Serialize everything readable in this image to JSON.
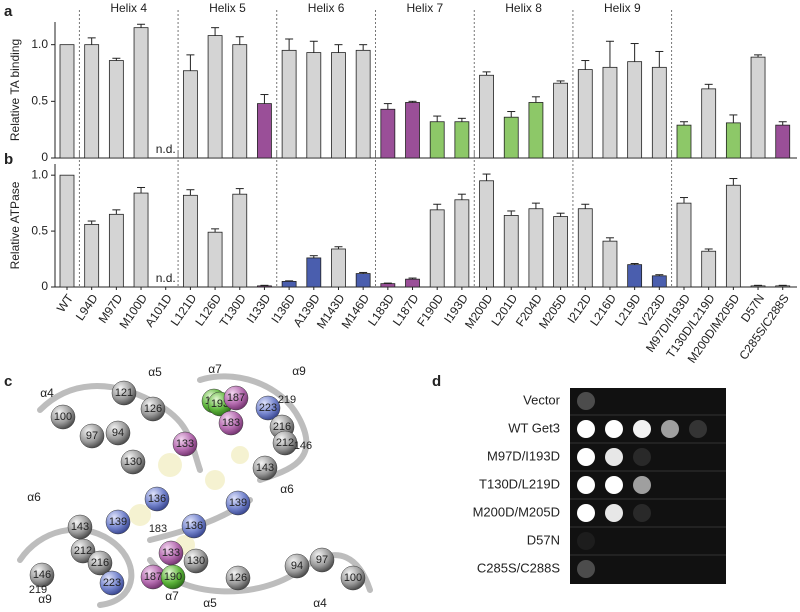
{
  "chart_data": [
    {
      "type": "bar",
      "panel": "a",
      "y_label": "Relative TA binding",
      "values": [
        1.0,
        1.0,
        0.86,
        1.15,
        null,
        0.77,
        1.08,
        1.0,
        0.48,
        0.95,
        0.93,
        0.93,
        0.95,
        0.43,
        0.49,
        0.32,
        0.32,
        0.73,
        0.36,
        0.49,
        0.66,
        0.78,
        0.8,
        0.85,
        0.8,
        0.29,
        0.61,
        0.31,
        0.89,
        0.29
      ],
      "errors": [
        0,
        0.06,
        0.02,
        0.03,
        null,
        0.14,
        0.07,
        0.07,
        0.08,
        0.1,
        0.1,
        0.07,
        0.05,
        0.05,
        0.01,
        0.05,
        0.03,
        0.03,
        0.05,
        0.05,
        0.02,
        0.08,
        0.23,
        0.16,
        0.14,
        0.03,
        0.04,
        0.07,
        0.02,
        0.03
      ],
      "value_labels": [
        null,
        null,
        null,
        null,
        "n.d.",
        null,
        null,
        null,
        null,
        null,
        null,
        null,
        null,
        null,
        null,
        null,
        null,
        null,
        null,
        null,
        null,
        null,
        null,
        null,
        null,
        null,
        null,
        null,
        null,
        null
      ],
      "colors": [
        "#d4d4d4",
        "#d4d4d4",
        "#d4d4d4",
        "#d4d4d4",
        "#d4d4d4",
        "#d4d4d4",
        "#d4d4d4",
        "#d4d4d4",
        "#9a4f98",
        "#d4d4d4",
        "#d4d4d4",
        "#d4d4d4",
        "#d4d4d4",
        "#9a4f98",
        "#9a4f98",
        "#8dc868",
        "#8dc868",
        "#d4d4d4",
        "#8dc868",
        "#8dc868",
        "#d4d4d4",
        "#d4d4d4",
        "#d4d4d4",
        "#d4d4d4",
        "#d4d4d4",
        "#8dc868",
        "#d4d4d4",
        "#8dc868",
        "#d4d4d4",
        "#9a4f98"
      ],
      "groups": [
        {
          "label": "Helix 4",
          "size": 4
        },
        {
          "label": "Helix 5",
          "size": 4
        },
        {
          "label": "Helix 6",
          "size": 4
        },
        {
          "label": "Helix 7",
          "size": 4
        },
        {
          "label": "Helix 8",
          "size": 4
        },
        {
          "label": "Helix 9",
          "size": 4
        }
      ],
      "ylim": [
        0,
        1.2
      ],
      "yticks": [
        0,
        0.5,
        {
          "value": 1,
          "label": "1.0"
        }
      ]
    },
    {
      "type": "bar",
      "panel": "b",
      "y_label": "Relative ATPase",
      "categories": [
        "WT",
        "L94D",
        "M97D",
        "M100D",
        "A101D",
        "L121D",
        "L126D",
        "T130D",
        "I133D",
        "I136D",
        "A139D",
        "M143D",
        "M146D",
        "L183D",
        "L187D",
        "F190D",
        "I193D",
        "M200D",
        "L201D",
        "F204D",
        "M205D",
        "I212D",
        "L216D",
        "L219D",
        "V223D",
        "M97D/I193D",
        "T130D/L219D",
        "M200D/M205D",
        "D57N",
        "C285S/C288S"
      ],
      "values": [
        1.0,
        0.56,
        0.65,
        0.84,
        null,
        0.82,
        0.49,
        0.83,
        0.01,
        0.05,
        0.26,
        0.34,
        0.12,
        0.03,
        0.07,
        0.69,
        0.78,
        0.95,
        0.64,
        0.7,
        0.63,
        0.7,
        0.41,
        0.2,
        0.1,
        0.75,
        0.32,
        0.91,
        0.01,
        0.01
      ],
      "errors": [
        0,
        0.03,
        0.04,
        0.05,
        null,
        0.05,
        0.03,
        0.05,
        0.005,
        0.005,
        0.02,
        0.02,
        0.01,
        0.005,
        0.01,
        0.05,
        0.05,
        0.06,
        0.04,
        0.05,
        0.03,
        0.04,
        0.03,
        0.01,
        0.01,
        0.05,
        0.02,
        0.06,
        0.005,
        0.005
      ],
      "value_labels": [
        null,
        null,
        null,
        null,
        "n.d.",
        null,
        null,
        null,
        null,
        null,
        null,
        null,
        null,
        null,
        null,
        null,
        null,
        null,
        null,
        null,
        null,
        null,
        null,
        null,
        null,
        null,
        null,
        null,
        null,
        null
      ],
      "colors": [
        "#d4d4d4",
        "#d4d4d4",
        "#d4d4d4",
        "#d4d4d4",
        "#d4d4d4",
        "#d4d4d4",
        "#d4d4d4",
        "#d4d4d4",
        "#9a4f98",
        "#4a5eae",
        "#4a5eae",
        "#d4d4d4",
        "#4a5eae",
        "#9a4f98",
        "#9a4f98",
        "#d4d4d4",
        "#d4d4d4",
        "#d4d4d4",
        "#d4d4d4",
        "#d4d4d4",
        "#d4d4d4",
        "#d4d4d4",
        "#d4d4d4",
        "#4a5eae",
        "#4a5eae",
        "#d4d4d4",
        "#d4d4d4",
        "#d4d4d4",
        "#d4d4d4",
        "#d4d4d4"
      ],
      "group_sizes": [
        4,
        4,
        4,
        4,
        4,
        4
      ],
      "ylim": [
        0,
        1.1
      ],
      "yticks": [
        0,
        0.5,
        {
          "value": 1,
          "label": "1.0"
        }
      ]
    }
  ],
  "structure": {
    "panel": "c",
    "helix_labels": [
      "α4",
      "α5",
      "α7",
      "α9",
      "α6",
      "α6",
      "α9",
      "α7",
      "α5",
      "α4"
    ],
    "residues": [
      {
        "label": "100",
        "color": "gray"
      },
      {
        "label": "121",
        "color": "gray"
      },
      {
        "label": "126",
        "color": "gray"
      },
      {
        "label": "97",
        "color": "gray"
      },
      {
        "label": "94",
        "color": "gray"
      },
      {
        "label": "130",
        "color": "gray"
      },
      {
        "label": "133",
        "color": "purple"
      },
      {
        "label": "136",
        "color": "blue"
      },
      {
        "label": "139",
        "color": "blue"
      },
      {
        "label": "143",
        "color": "gray"
      },
      {
        "label": "212",
        "color": "gray"
      },
      {
        "label": "146",
        "color": "gray"
      },
      {
        "label": "216",
        "color": "gray"
      },
      {
        "label": "219",
        "color": "none"
      },
      {
        "label": "223",
        "color": "blue"
      },
      {
        "label": "190",
        "color": "green"
      },
      {
        "label": "193",
        "color": "green"
      },
      {
        "label": "187",
        "color": "purple"
      },
      {
        "label": "183",
        "color": "purple"
      },
      {
        "label": "223",
        "color": "blue"
      },
      {
        "label": "219",
        "color": "none"
      },
      {
        "label": "216",
        "color": "gray"
      },
      {
        "label": "212",
        "color": "gray"
      },
      {
        "label": "146",
        "color": "none"
      },
      {
        "label": "143",
        "color": "gray"
      },
      {
        "label": "139",
        "color": "blue"
      },
      {
        "label": "136",
        "color": "blue"
      },
      {
        "label": "133",
        "color": "purple"
      },
      {
        "label": "183",
        "color": "none"
      },
      {
        "label": "187",
        "color": "purple"
      },
      {
        "label": "190",
        "color": "green"
      },
      {
        "label": "130",
        "color": "gray"
      },
      {
        "label": "126",
        "color": "gray"
      },
      {
        "label": "94",
        "color": "gray"
      },
      {
        "label": "97",
        "color": "gray"
      },
      {
        "label": "100",
        "color": "gray"
      }
    ]
  },
  "spot_assay": {
    "panel": "d",
    "rows": [
      "Vector",
      "WT Get3",
      "M97D/I193D",
      "T130D/L219D",
      "M200D/M205D",
      "D57N",
      "C285S/C288S"
    ]
  }
}
